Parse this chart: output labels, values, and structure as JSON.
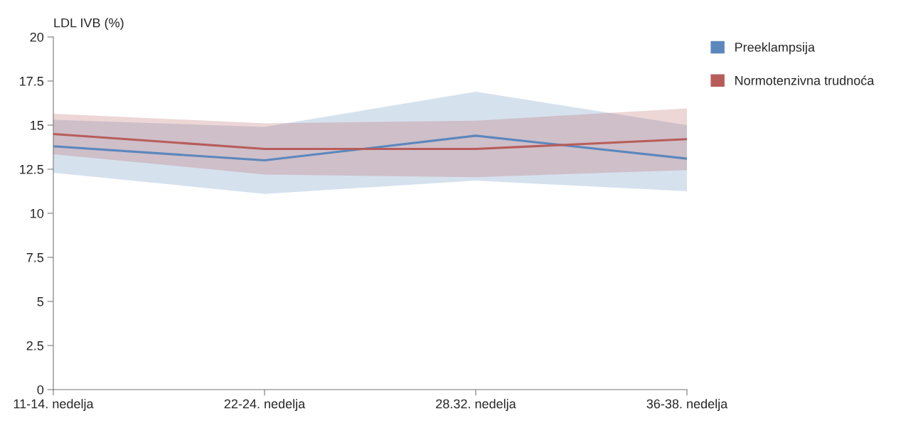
{
  "chart_data": {
    "type": "line",
    "ylabel": "LDL IVB (%)",
    "categories": [
      "11-14. nedelja",
      "22-24. nedelja",
      "28.32. nedelja",
      "36-38. nedelja"
    ],
    "series": [
      {
        "name": "Preeklampsija",
        "color": "#5b87bd",
        "values": [
          13.8,
          13.0,
          14.4,
          13.1
        ],
        "lower": [
          12.3,
          11.1,
          11.85,
          11.25
        ],
        "upper": [
          15.3,
          14.9,
          16.9,
          15.0
        ]
      },
      {
        "name": "Normotenzivna trudnoća",
        "color": "#b85c5a",
        "values": [
          14.5,
          13.65,
          13.65,
          14.2
        ],
        "lower": [
          13.35,
          12.2,
          12.05,
          12.45
        ],
        "upper": [
          15.65,
          15.1,
          15.25,
          15.95
        ]
      }
    ],
    "ylim": [
      0,
      20
    ],
    "yticks": [
      0,
      2.5,
      5,
      7.5,
      10,
      12.5,
      15,
      17.5,
      20
    ],
    "grid": false,
    "legend": "top right",
    "marker": "none",
    "line_style": "solid"
  }
}
